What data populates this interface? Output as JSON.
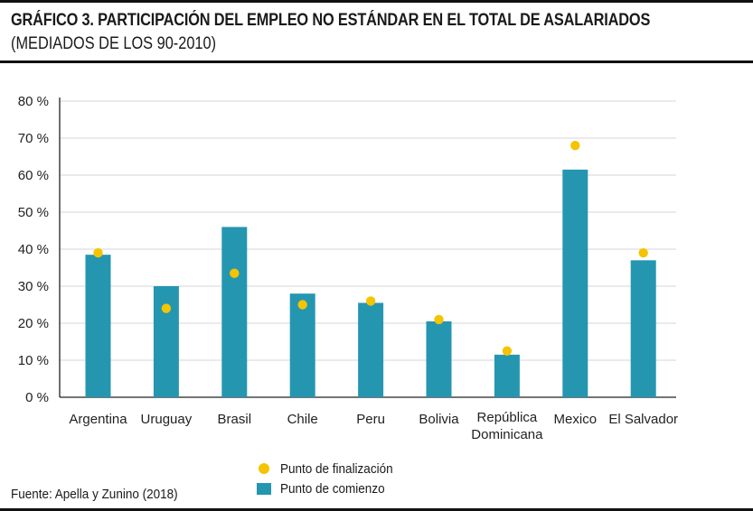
{
  "header": {
    "title": "GRÁFICO 3. PARTICIPACIÓN DEL EMPLEO NO ESTÁNDAR EN EL TOTAL DE ASALARIADOS",
    "subtitle": "(MEDIADOS DE LOS 90-2010)"
  },
  "chart_data": {
    "type": "bar",
    "categories": [
      "Argentina",
      "Uruguay",
      "Brasil",
      "Chile",
      "Peru",
      "Bolivia",
      "República Dominicana",
      "Mexico",
      "El Salvador"
    ],
    "category_lines": [
      [
        "Argentina"
      ],
      [
        "Uruguay"
      ],
      [
        "Brasil"
      ],
      [
        "Chile"
      ],
      [
        "Peru"
      ],
      [
        "Bolivia"
      ],
      [
        "República",
        "Dominicana"
      ],
      [
        "Mexico"
      ],
      [
        "El Salvador"
      ]
    ],
    "series": [
      {
        "name": "Punto de comienzo",
        "kind": "bar",
        "values": [
          38.5,
          30,
          46,
          28,
          25.5,
          20.5,
          11.5,
          61.5,
          37
        ]
      },
      {
        "name": "Punto de finalización",
        "kind": "point",
        "values": [
          39,
          24,
          33.5,
          25,
          26,
          21,
          12.5,
          68,
          39
        ]
      }
    ],
    "yticks": [
      "0 %",
      "10 %",
      "20 %",
      "30 %",
      "40 %",
      "50 %",
      "60 %",
      "70 %",
      "80 %"
    ],
    "ylim": [
      0,
      80
    ],
    "grid": true,
    "legend_position": "bottom-center",
    "colors": {
      "bar": "#2596b0",
      "point": "#f5c400",
      "grid": "#d4d4d4",
      "axis": "#222222"
    }
  },
  "legend": {
    "end_label": "Punto de finalización",
    "start_label": "Punto de comienzo"
  },
  "footer": {
    "source": "Fuente: Apella y Zunino (2018)"
  }
}
